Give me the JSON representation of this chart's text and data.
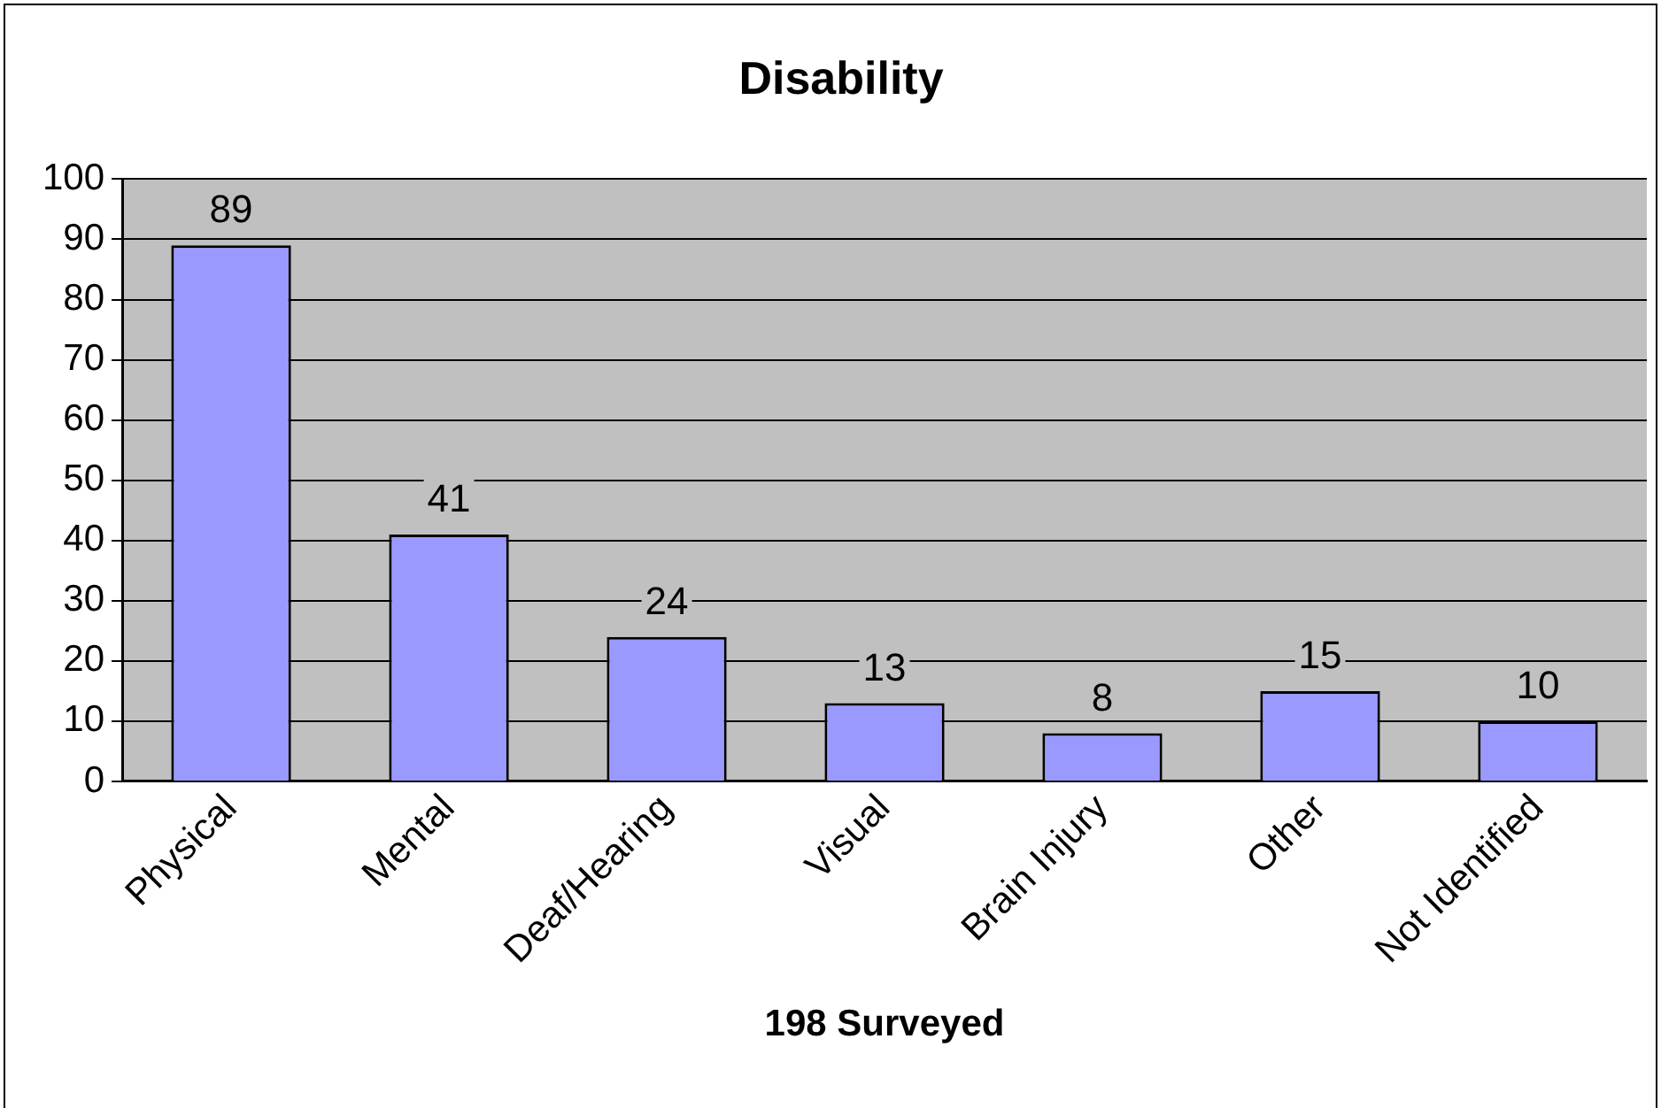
{
  "chart_data": {
    "type": "bar",
    "title": "Disability",
    "xlabel": "198 Surveyed",
    "categories": [
      "Physical",
      "Mental",
      "Deaf/Hearing",
      "Visual",
      "Brain Injury",
      "Other",
      "Not Identified"
    ],
    "values": [
      89,
      41,
      24,
      13,
      8,
      15,
      10
    ],
    "color": "#9999ff",
    "ylim": [
      0,
      100
    ],
    "yticks": [
      0,
      10,
      20,
      30,
      40,
      50,
      60,
      70,
      80,
      90,
      100
    ],
    "grid": "y",
    "legend": false,
    "data_labels": true
  }
}
